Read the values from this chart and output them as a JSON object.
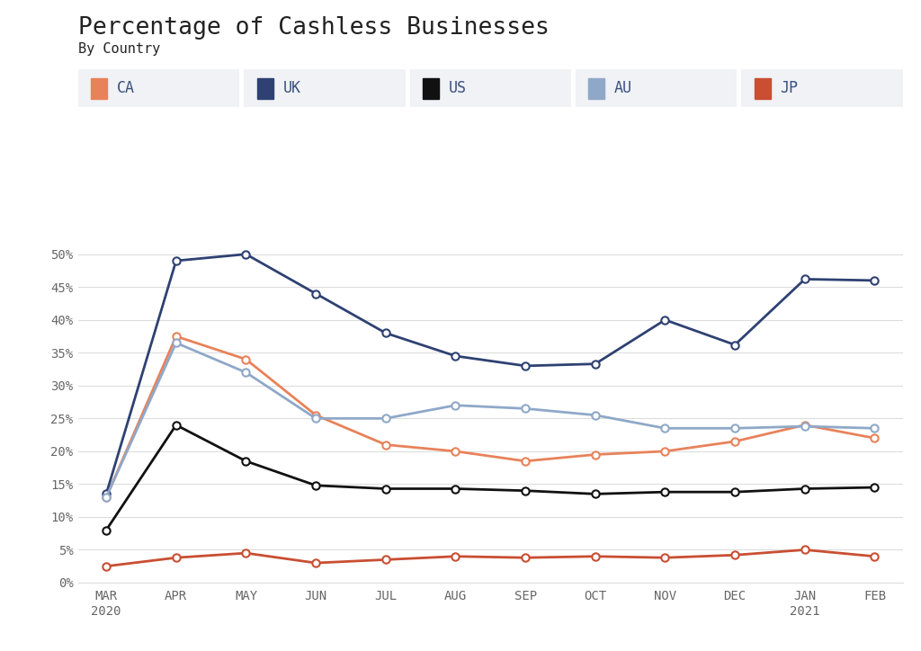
{
  "title": "Percentage of Cashless Businesses",
  "subtitle": "By Country",
  "months": [
    "MAR\n2020",
    "APR",
    "MAY",
    "JUN",
    "JUL",
    "AUG",
    "SEP",
    "OCT",
    "NOV",
    "DEC",
    "JAN\n2021",
    "FEB"
  ],
  "series_order": [
    "CA",
    "UK",
    "US",
    "AU",
    "JP"
  ],
  "series": {
    "CA": {
      "color": "#E8825A",
      "values": [
        0.13,
        0.375,
        0.34,
        0.255,
        0.21,
        0.2,
        0.185,
        0.195,
        0.2,
        0.215,
        0.24,
        0.22
      ]
    },
    "UK": {
      "color": "#2E4172",
      "values": [
        0.135,
        0.49,
        0.5,
        0.44,
        0.38,
        0.345,
        0.33,
        0.333,
        0.4,
        0.362,
        0.462,
        0.46
      ]
    },
    "US": {
      "color": "#111111",
      "values": [
        0.08,
        0.24,
        0.185,
        0.148,
        0.143,
        0.143,
        0.14,
        0.135,
        0.138,
        0.138,
        0.143,
        0.145
      ]
    },
    "AU": {
      "color": "#8FA8C8",
      "values": [
        0.13,
        0.365,
        0.32,
        0.25,
        0.25,
        0.27,
        0.265,
        0.255,
        0.235,
        0.235,
        0.238,
        0.235
      ]
    },
    "JP": {
      "color": "#C94E32",
      "values": [
        0.025,
        0.038,
        0.045,
        0.03,
        0.035,
        0.04,
        0.038,
        0.04,
        0.038,
        0.042,
        0.05,
        0.04
      ]
    }
  },
  "ylim": [
    0,
    0.55
  ],
  "yticks": [
    0,
    0.05,
    0.1,
    0.15,
    0.2,
    0.25,
    0.3,
    0.35,
    0.4,
    0.45,
    0.5
  ],
  "background_color": "#FFFFFF",
  "legend_bg": "#F0F2F5",
  "grid_color": "#DDDDDD",
  "title_color": "#222222",
  "axis_label_color": "#666666",
  "legend_text_color": "#3A5080"
}
